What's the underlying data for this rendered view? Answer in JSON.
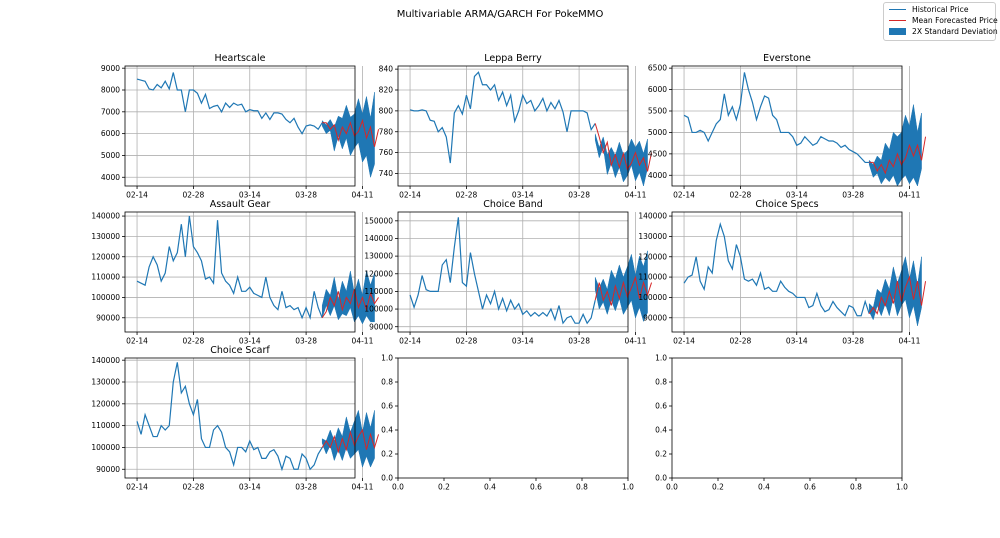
{
  "figure": {
    "title": "Multivariable ARMA/GARCH For PokeMMO",
    "legend": {
      "placement": "top-right",
      "entries": [
        {
          "name": "Historical Price",
          "kind": "line",
          "color": "#1f77b4"
        },
        {
          "name": "Mean Forecasted Price",
          "kind": "line",
          "color": "#d62728"
        },
        {
          "name": "2X Standard Deviation",
          "kind": "patch",
          "color": "#1f77b4"
        }
      ]
    }
  },
  "chart_data": [
    {
      "type": "line",
      "title": "Heartscale",
      "grid": true,
      "x_ticks": [
        "02-14",
        "02-28",
        "03-14",
        "03-28",
        "04-11"
      ],
      "yticks": [
        4000,
        5000,
        6000,
        7000,
        8000,
        9000
      ],
      "ytick_labels": [
        "4000",
        "5000",
        "6000",
        "7000",
        "8000",
        "9000"
      ],
      "ylim": [
        3600,
        9100
      ],
      "historical": [
        8500,
        8450,
        8400,
        8050,
        8000,
        8250,
        8100,
        8400,
        8050,
        8800,
        8000,
        8000,
        7000,
        8000,
        8000,
        7850,
        7400,
        7800,
        7150,
        7250,
        7300,
        7000,
        7400,
        7200,
        7400,
        7300,
        7350,
        7000,
        7100,
        7050,
        7050,
        6700,
        6950,
        6650,
        6950,
        6950,
        6900,
        6650,
        6500,
        6700,
        6300,
        6000,
        6350,
        6400,
        6350,
        6200,
        6500
      ],
      "forecast_mean": [
        6500,
        6200,
        6400,
        5700,
        6300,
        6000,
        6500,
        5900,
        6100,
        6600,
        5800,
        6300,
        5400,
        6200
      ],
      "forecast_upper": [
        6600,
        6400,
        6650,
        6300,
        6800,
        6700,
        7300,
        6750,
        6900,
        7600,
        6900,
        7700,
        6700,
        7900
      ],
      "forecast_lower": [
        6350,
        6000,
        6150,
        5200,
        5900,
        5300,
        5800,
        5000,
        5350,
        5600,
        4700,
        5000,
        4000,
        4600
      ]
    },
    {
      "type": "line",
      "title": "Leppa Berry",
      "grid": true,
      "x_ticks": [
        "02-14",
        "02-28",
        "03-14",
        "03-28",
        "04-11"
      ],
      "yticks": [
        740,
        760,
        780,
        800,
        820,
        840
      ],
      "ytick_labels": [
        "740",
        "760",
        "780",
        "800",
        "820",
        "840"
      ],
      "ylim": [
        728,
        843
      ],
      "historical": [
        801,
        800,
        800,
        801,
        800,
        791,
        790,
        780,
        784,
        775,
        750,
        798,
        805,
        797,
        815,
        802,
        833,
        837,
        825,
        825,
        820,
        825,
        810,
        818,
        805,
        815,
        790,
        800,
        815,
        807,
        810,
        800,
        805,
        812,
        800,
        808,
        802,
        810,
        799,
        780,
        800,
        800,
        800,
        800,
        798,
        782,
        788
      ],
      "forecast_mean": [
        775,
        760,
        770,
        748,
        758,
        746,
        759,
        744,
        750,
        760,
        748,
        755,
        742,
        760
      ],
      "forecast_upper": [
        778,
        765,
        775,
        758,
        765,
        757,
        770,
        758,
        762,
        773,
        765,
        771,
        759,
        773
      ],
      "forecast_lower": [
        772,
        755,
        765,
        739,
        750,
        736,
        746,
        732,
        738,
        748,
        733,
        741,
        728,
        745
      ]
    },
    {
      "type": "line",
      "title": "Everstone",
      "grid": true,
      "x_ticks": [
        "02-14",
        "02-28",
        "03-14",
        "03-28",
        "04-11"
      ],
      "yticks": [
        4000,
        4500,
        5000,
        5500,
        6000,
        6500
      ],
      "ytick_labels": [
        "4000",
        "4500",
        "5000",
        "5500",
        "6000",
        "6500"
      ],
      "ylim": [
        3750,
        6550
      ],
      "historical": [
        5400,
        5350,
        5000,
        5000,
        5050,
        5000,
        4800,
        5000,
        5200,
        5300,
        5900,
        5400,
        5600,
        5300,
        5650,
        6400,
        6000,
        5700,
        5300,
        5600,
        5850,
        5800,
        5400,
        5300,
        5000,
        5000,
        5000,
        4900,
        4700,
        4750,
        4900,
        4800,
        4700,
        4750,
        4900,
        4850,
        4800,
        4800,
        4750,
        4650,
        4700,
        4600,
        4550,
        4500,
        4400,
        4300,
        4300
      ],
      "forecast_mean": [
        4300,
        4100,
        4250,
        4050,
        4350,
        4200,
        4500,
        4250,
        4400,
        4700,
        4450,
        4700,
        4350,
        4900
      ],
      "forecast_upper": [
        4350,
        4250,
        4450,
        4350,
        4750,
        4600,
        5000,
        4900,
        5000,
        5400,
        5150,
        5650,
        5000,
        5450
      ],
      "forecast_lower": [
        4250,
        3950,
        4050,
        3800,
        3950,
        3850,
        4000,
        3750,
        3900,
        4000,
        3800,
        3950,
        3750,
        4150
      ]
    },
    {
      "type": "line",
      "title": "Assault Gear",
      "grid": true,
      "x_ticks": [
        "02-14",
        "02-28",
        "03-14",
        "03-28",
        "04-11"
      ],
      "yticks": [
        90000,
        100000,
        110000,
        120000,
        130000,
        140000
      ],
      "ytick_labels": [
        "90000",
        "100000",
        "110000",
        "120000",
        "130000",
        "140000"
      ],
      "ylim": [
        83000,
        142000
      ],
      "historical": [
        108000,
        107000,
        106000,
        115000,
        120000,
        116000,
        108000,
        112000,
        125000,
        118000,
        122000,
        136000,
        120000,
        140000,
        125000,
        122000,
        118000,
        109000,
        110000,
        107000,
        138000,
        112000,
        108000,
        106000,
        102000,
        110000,
        103000,
        103000,
        105000,
        102000,
        101000,
        100000,
        110000,
        100000,
        96000,
        94000,
        103000,
        95000,
        96000,
        94000,
        95000,
        90000,
        95000,
        90000,
        103000,
        95000,
        90000
      ],
      "forecast_mean": [
        93000,
        100000,
        96000,
        103000,
        94000,
        100000,
        97000,
        104000,
        95000,
        100000,
        94000,
        102000,
        97000,
        100000
      ],
      "forecast_upper": [
        96000,
        104000,
        101000,
        110000,
        99000,
        108000,
        103000,
        113000,
        102000,
        109000,
        101000,
        113000,
        106000,
        112000
      ],
      "forecast_lower": [
        90000,
        96000,
        91000,
        96000,
        89000,
        92000,
        91000,
        95000,
        88000,
        91000,
        87000,
        91000,
        88000,
        88000
      ]
    },
    {
      "type": "line",
      "title": "Choice Band",
      "grid": true,
      "x_ticks": [
        "02-14",
        "02-28",
        "03-14",
        "03-28",
        "04-11"
      ],
      "yticks": [
        90000,
        100000,
        110000,
        120000,
        130000,
        140000,
        150000
      ],
      "ytick_labels": [
        "90000",
        "100000",
        "110000",
        "120000",
        "130000",
        "140000",
        "150000"
      ],
      "ylim": [
        87000,
        155000
      ],
      "historical": [
        108000,
        101000,
        108000,
        119000,
        111000,
        110000,
        110000,
        110000,
        125000,
        128000,
        115000,
        135000,
        152000,
        115000,
        113000,
        132000,
        120000,
        110000,
        100000,
        108000,
        103000,
        110000,
        100000,
        106000,
        99000,
        105000,
        100000,
        103000,
        97000,
        99000,
        96000,
        98000,
        96000,
        98000,
        96000,
        100000,
        94000,
        102000,
        92000,
        95000,
        96000,
        92000,
        92000,
        97000,
        92000,
        95000,
        105000
      ],
      "forecast_mean": [
        115000,
        105000,
        110000,
        102000,
        113000,
        106000,
        115000,
        107000,
        112000,
        118000,
        106000,
        115000,
        108000,
        115000
      ],
      "forecast_upper": [
        118000,
        112000,
        117000,
        111000,
        122000,
        117000,
        125000,
        118000,
        124000,
        131000,
        119000,
        130000,
        124000,
        133000
      ],
      "forecast_lower": [
        111000,
        100000,
        104000,
        97000,
        105000,
        99000,
        106000,
        97000,
        101000,
        105000,
        95000,
        101000,
        93000,
        98000
      ]
    },
    {
      "type": "line",
      "title": "Choice Specs",
      "grid": true,
      "x_ticks": [
        "02-14",
        "02-28",
        "03-14",
        "03-28",
        "04-11"
      ],
      "yticks": [
        90000,
        100000,
        110000,
        120000,
        130000,
        140000
      ],
      "ytick_labels": [
        "90000",
        "100000",
        "110000",
        "120000",
        "130000",
        "140000"
      ],
      "ylim": [
        83000,
        142000
      ],
      "historical": [
        107000,
        110000,
        111000,
        120000,
        108000,
        104000,
        115000,
        112000,
        128000,
        136000,
        130000,
        118000,
        114000,
        126000,
        120000,
        109000,
        108000,
        109000,
        106000,
        112000,
        104000,
        105000,
        103000,
        103000,
        108000,
        105000,
        103000,
        102000,
        100000,
        100000,
        100000,
        95000,
        96000,
        102000,
        96000,
        93000,
        94000,
        98000,
        95000,
        93000,
        91000,
        96000,
        95000,
        91000,
        91000,
        98000,
        92000
      ],
      "forecast_mean": [
        95000,
        92000,
        100000,
        96000,
        103000,
        97000,
        108000,
        98000,
        105000,
        110000,
        99000,
        108000,
        96000,
        108000
      ],
      "forecast_upper": [
        97000,
        95000,
        104000,
        102000,
        109000,
        104000,
        115000,
        107000,
        113000,
        120000,
        109000,
        118000,
        106000,
        120000
      ],
      "forecast_lower": [
        93000,
        89000,
        96000,
        91000,
        97000,
        91000,
        100000,
        91000,
        96000,
        99000,
        90000,
        96000,
        86000,
        95000
      ]
    },
    {
      "type": "line",
      "title": "Choice Scarf",
      "grid": true,
      "x_ticks": [
        "02-14",
        "02-28",
        "03-14",
        "03-28",
        "04-11"
      ],
      "yticks": [
        90000,
        100000,
        110000,
        120000,
        130000,
        140000
      ],
      "ytick_labels": [
        "90000",
        "100000",
        "110000",
        "120000",
        "130000",
        "140000"
      ],
      "ylim": [
        86000,
        141000
      ],
      "historical": [
        112000,
        106000,
        115000,
        110000,
        105000,
        105000,
        110000,
        108000,
        110000,
        130000,
        139000,
        125000,
        128000,
        120000,
        115000,
        122000,
        104000,
        100000,
        100000,
        108000,
        110000,
        107000,
        100000,
        98000,
        92000,
        100000,
        100000,
        98000,
        103000,
        99000,
        100000,
        95000,
        95000,
        98000,
        99000,
        96000,
        90000,
        96000,
        95000,
        90000,
        90000,
        97000,
        95000,
        90000,
        92000,
        97000,
        100000
      ],
      "forecast_mean": [
        103000,
        100000,
        105000,
        98000,
        104000,
        99000,
        107000,
        101000,
        105000,
        108000,
        99000,
        106000,
        100000,
        106000
      ],
      "forecast_upper": [
        104000,
        103000,
        108000,
        103000,
        109000,
        105000,
        114000,
        107000,
        112000,
        117000,
        107000,
        116000,
        109000,
        117000
      ],
      "forecast_lower": [
        102000,
        97000,
        101000,
        94000,
        99000,
        94000,
        100000,
        95000,
        97000,
        99000,
        91000,
        96000,
        91000,
        95000
      ]
    },
    {
      "type": "line",
      "title": "",
      "grid": false,
      "x_ticks": [
        "0.0",
        "0.2",
        "0.4",
        "0.6",
        "0.8",
        "1.0"
      ],
      "yticks": [
        0,
        0.2,
        0.4,
        0.6,
        0.8,
        1.0
      ],
      "ytick_labels": [
        "0.0",
        "0.2",
        "0.4",
        "0.6",
        "0.8",
        "1.0"
      ],
      "ylim": [
        0,
        1
      ],
      "xlim": [
        0,
        1
      ]
    },
    {
      "type": "line",
      "title": "",
      "grid": false,
      "x_ticks": [
        "0.0",
        "0.2",
        "0.4",
        "0.6",
        "0.8",
        "1.0"
      ],
      "yticks": [
        0,
        0.2,
        0.4,
        0.6,
        0.8,
        1.0
      ],
      "ytick_labels": [
        "0.0",
        "0.2",
        "0.4",
        "0.6",
        "0.8",
        "1.0"
      ],
      "ylim": [
        0,
        1
      ],
      "xlim": [
        0,
        1
      ]
    }
  ]
}
